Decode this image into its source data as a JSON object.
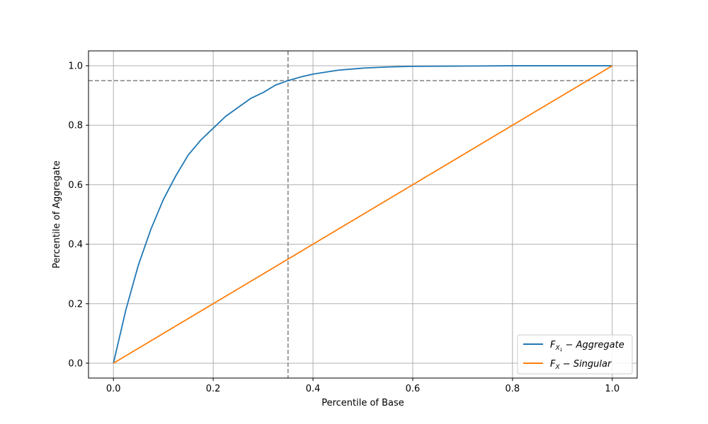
{
  "chart_data": {
    "type": "line",
    "title": "",
    "xlabel": "Percentile of Base",
    "ylabel": "Percentile of Aggregate",
    "xlim": [
      -0.05,
      1.05
    ],
    "ylim": [
      -0.05,
      1.05
    ],
    "xticks": [
      0.0,
      0.2,
      0.4,
      0.6,
      0.8,
      1.0
    ],
    "yticks": [
      0.0,
      0.2,
      0.4,
      0.6,
      0.8,
      1.0
    ],
    "xtick_labels": [
      "0.0",
      "0.2",
      "0.4",
      "0.6",
      "0.8",
      "1.0"
    ],
    "ytick_labels": [
      "0.0",
      "0.2",
      "0.4",
      "0.6",
      "0.8",
      "1.0"
    ],
    "grid": true,
    "legend_position": "lower-right",
    "series": [
      {
        "name": "F_{X_1} - Aggregate",
        "legend_main": "F",
        "legend_sub": "X",
        "legend_subsub": "1",
        "legend_suffix": " − Aggregate",
        "color": "#1f77b4",
        "x": [
          0,
          0.025,
          0.05,
          0.075,
          0.1,
          0.125,
          0.15,
          0.175,
          0.2,
          0.225,
          0.25,
          0.275,
          0.3,
          0.325,
          0.35,
          0.375,
          0.4,
          0.45,
          0.5,
          0.55,
          0.6,
          0.7,
          0.8,
          0.9,
          1.0
        ],
        "y": [
          0,
          0.18,
          0.33,
          0.45,
          0.55,
          0.63,
          0.7,
          0.75,
          0.79,
          0.83,
          0.86,
          0.89,
          0.91,
          0.935,
          0.95,
          0.962,
          0.972,
          0.985,
          0.992,
          0.996,
          0.998,
          0.999,
          1.0,
          1.0,
          1.0
        ]
      },
      {
        "name": "F_X - Singular",
        "legend_main": "F",
        "legend_sub": "X",
        "legend_subsub": "",
        "legend_suffix": " − Singular",
        "color": "#ff7f0e",
        "x": [
          0,
          1.0
        ],
        "y": [
          0,
          1.0
        ]
      }
    ],
    "reference_lines": [
      {
        "orientation": "vertical",
        "value": 0.35,
        "style": "dashed",
        "color": "#808080"
      },
      {
        "orientation": "horizontal",
        "value": 0.95,
        "style": "dashed",
        "color": "#808080"
      }
    ]
  }
}
